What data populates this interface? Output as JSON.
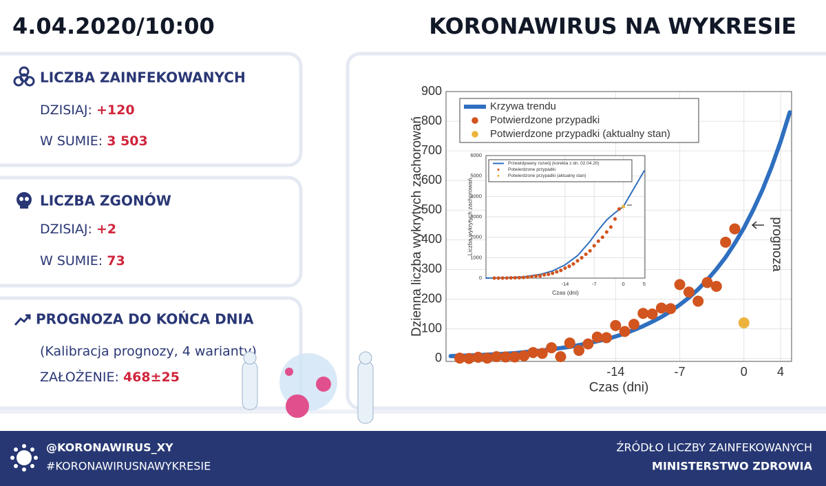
{
  "header": {
    "date": "4.04.2020/10:00",
    "title": "KORONAWIRUS NA WYKRESIE"
  },
  "panels": [
    {
      "title": "LICZBA ZAINFEKOWANYCH",
      "rows": [
        {
          "label": "DZISIAJ:",
          "value": "+120"
        },
        {
          "label": "W SUMIE:",
          "value": "3 503"
        }
      ]
    },
    {
      "title": "LICZBA ZGONÓW",
      "rows": [
        {
          "label": "DZISIAJ:",
          "value": "+2"
        },
        {
          "label": "W SUMIE:",
          "value": "73"
        }
      ]
    },
    {
      "title": "PROGNOZA DO KOŃCA DNIA",
      "note": "(Kalibracja prognozy, 4 warianty)",
      "rows": [
        {
          "label": "ZAŁOŻENIE:",
          "value": "468±25"
        }
      ]
    }
  ],
  "footer": {
    "handle": "@KORONAWIRUS_XY",
    "hashtag": "#KORONAWIRUSNAWYKRESIE",
    "source_label": "ŹRÓDŁO LICZBY ZAINFEKOWANYCH",
    "source": "MINISTERSTWO ZDROWIA"
  },
  "chart_data": [
    {
      "type": "line",
      "xlabel": "Czas (dni)",
      "ylabel": "Dzienna liczba wykrytych zachorowań",
      "annotation": "prognoza",
      "xlim": [
        -32.5,
        5.2
      ],
      "ylim": [
        -10,
        900
      ],
      "xticks": [
        -14,
        -7,
        0,
        4
      ],
      "yticks": [
        0,
        100,
        200,
        300,
        400,
        500,
        600,
        700,
        800,
        900
      ],
      "grid": true,
      "legend": "upper left",
      "series": [
        {
          "name": "Krzywa trendu",
          "type": "line",
          "color": "#2f6fbf",
          "x": [
            -32,
            -31,
            -30,
            -29,
            -28,
            -27,
            -26,
            -25,
            -24,
            -23,
            -22,
            -21,
            -20,
            -19,
            -18,
            -17,
            -16,
            -15,
            -14,
            -13,
            -12,
            -11,
            -10,
            -9,
            -8,
            -7,
            -6,
            -5,
            -4,
            -3,
            -2,
            -1,
            0,
            1,
            2,
            3,
            4,
            5
          ],
          "values": [
            8,
            9,
            10,
            11,
            13,
            14,
            16,
            18,
            21,
            24,
            27,
            31,
            35,
            39,
            45,
            51,
            58,
            65,
            74,
            84,
            96,
            109,
            124,
            140,
            159,
            181,
            205,
            233,
            265,
            301,
            341,
            388,
            440,
            500,
            567,
            644,
            731,
            830
          ]
        },
        {
          "name": "Potwierdzone przypadki",
          "type": "scatter",
          "color": "#d2541f",
          "x": [
            -31,
            -30,
            -29,
            -28,
            -27,
            -26,
            -25,
            -24,
            -23,
            -22,
            -21,
            -20,
            -19,
            -18,
            -17,
            -16,
            -15,
            -14,
            -13,
            -12,
            -11,
            -10,
            -9,
            -8,
            -7,
            -6,
            -5,
            -4,
            -3,
            -2,
            -1
          ],
          "values": [
            1,
            0,
            4,
            1,
            6,
            5,
            5,
            9,
            20,
            17,
            36,
            6,
            52,
            27,
            49,
            72,
            70,
            111,
            91,
            115,
            152,
            150,
            170,
            168,
            249,
            224,
            193,
            256,
            243,
            392,
            437
          ]
        },
        {
          "name": "Potwierdzone przypadki (aktualny stan)",
          "type": "scatter",
          "color": "#ecb33c",
          "x": [
            0
          ],
          "values": [
            120
          ]
        }
      ]
    },
    {
      "type": "line",
      "xlabel": "Czas (dni)",
      "ylabel": "Liczba wykrytych zachorowań",
      "xlim": [
        -33,
        5.2
      ],
      "ylim": [
        0,
        6000
      ],
      "xticks": [
        -14,
        -7,
        0,
        5
      ],
      "yticks": [
        0,
        1000,
        2000,
        3000,
        4000,
        5000,
        6000
      ],
      "grid": true,
      "legend": "upper left",
      "series": [
        {
          "name": "Przewidywany rozwój (korekta z dn. 02.04.20)",
          "type": "line",
          "color": "#2f6fbf",
          "x": [
            -33,
            -28,
            -24,
            -20,
            -17,
            -14,
            -11,
            -8,
            -6,
            -4,
            -2,
            0,
            2,
            5
          ],
          "values": [
            0,
            20,
            60,
            180,
            350,
            650,
            1100,
            1800,
            2350,
            2850,
            3200,
            3500,
            4200,
            5250
          ]
        },
        {
          "name": "Potwierdzone przypadki",
          "type": "scatter",
          "color": "#d2541f",
          "x": [
            -31,
            -30,
            -29,
            -28,
            -27,
            -26,
            -25,
            -24,
            -23,
            -22,
            -21,
            -20,
            -19,
            -18,
            -17,
            -16,
            -15,
            -14,
            -13,
            -12,
            -11,
            -10,
            -9,
            -8,
            -7,
            -6,
            -5,
            -4,
            -3,
            -2,
            -1
          ],
          "values": [
            1,
            1,
            5,
            6,
            12,
            17,
            22,
            31,
            51,
            68,
            104,
            110,
            162,
            189,
            238,
            310,
            380,
            491,
            582,
            697,
            849,
            999,
            1169,
            1337,
            1586,
            1810,
            2003,
            2259,
            2502,
            2894,
            3383
          ]
        },
        {
          "name": "Potwierdzone przypadki (aktualny stan)",
          "type": "scatter",
          "color": "#ecb33c",
          "x": [
            0
          ],
          "values": [
            3503
          ]
        }
      ]
    }
  ]
}
